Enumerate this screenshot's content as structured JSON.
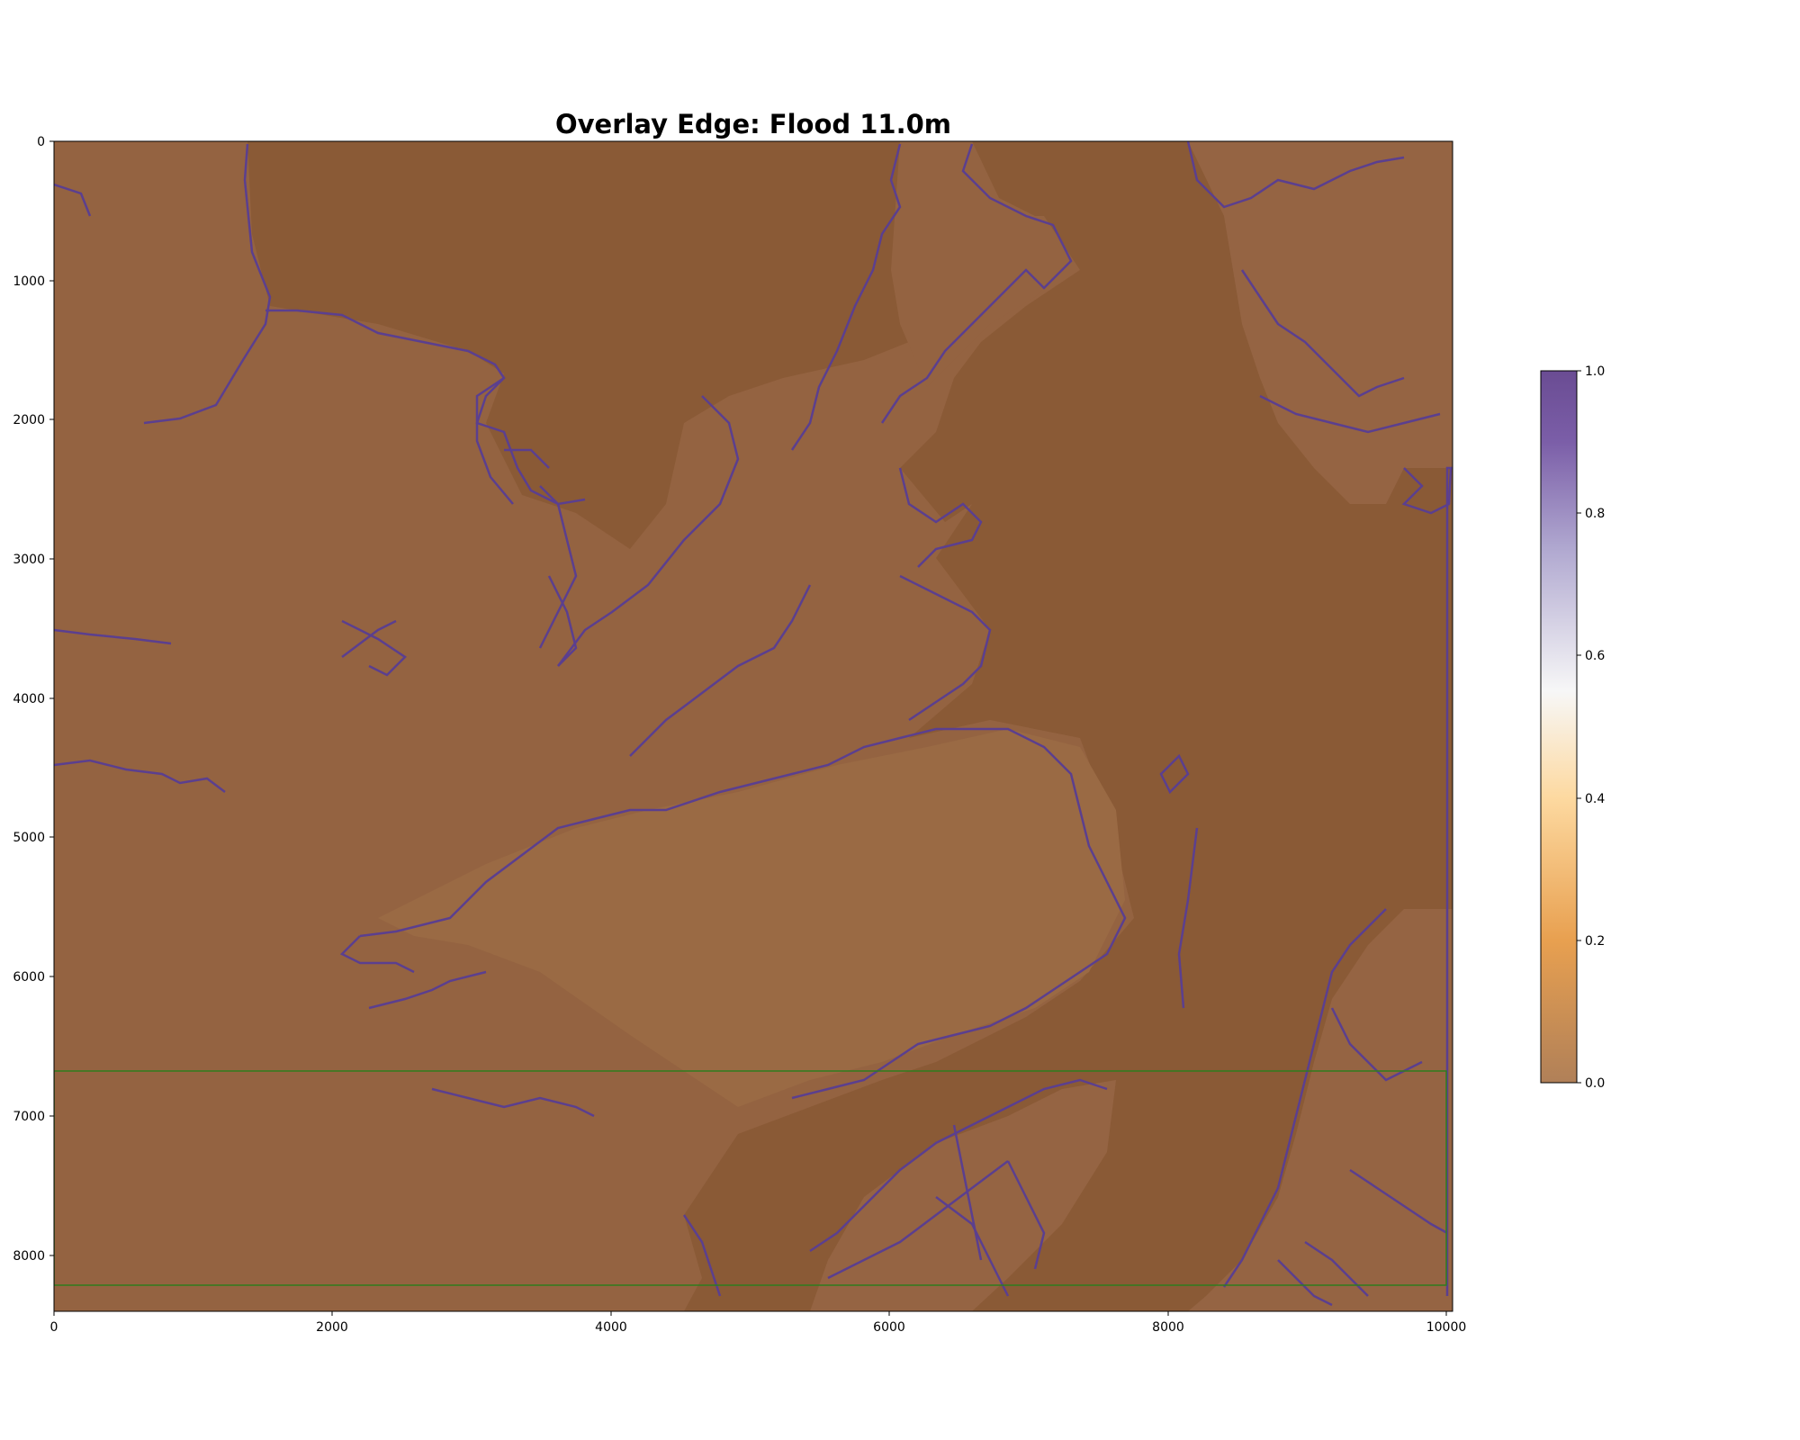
{
  "title": "Overlay Edge: Flood 11.0m",
  "map": {
    "x_ticks": [
      "0",
      "2000",
      "4000",
      "6000",
      "8000",
      "10000"
    ],
    "y_ticks": [
      "0",
      "1000",
      "2000",
      "3000",
      "4000",
      "5000",
      "6000",
      "7000",
      "8000"
    ],
    "xlim": [
      0,
      10040
    ],
    "ylim": [
      8400,
      0
    ],
    "background_color": "#8a5a36",
    "land_color": "#9c6c45",
    "edge_color": "#5b3f8f",
    "roi_box": {
      "x0": 0,
      "x1": 9990,
      "y0": 6650,
      "y1": 8180,
      "color": "#2e7d1e"
    }
  },
  "colorbar": {
    "ticks": [
      "0.0",
      "0.2",
      "0.4",
      "0.6",
      "0.8",
      "1.0"
    ],
    "cmap": "PuOr",
    "range": [
      0.0,
      1.0
    ],
    "stops": [
      "#b08058",
      "#e8a050",
      "#fdd9a0",
      "#f7f7f7",
      "#b0a8d0",
      "#7b5ea8",
      "#6a4c93"
    ]
  }
}
